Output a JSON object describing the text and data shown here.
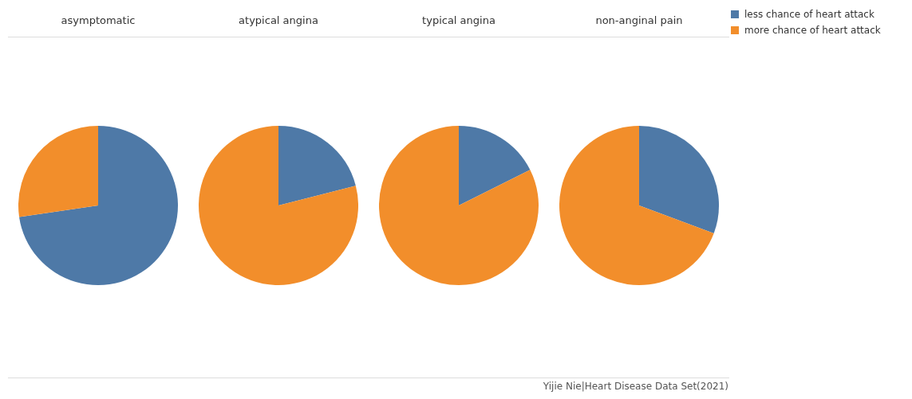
{
  "chart_data": [
    {
      "type": "pie",
      "title": "asymptomatic",
      "categories": [
        "less chance of heart attack",
        "more chance of heart attack"
      ],
      "values": [
        72.7,
        27.3
      ],
      "colors": [
        "#4e79a7",
        "#f28e2b"
      ],
      "legend": "top right"
    },
    {
      "type": "pie",
      "title": "atypical angina",
      "categories": [
        null,
        null
      ],
      "values": [
        21,
        79
      ],
      "colors": [
        "#4e79a7",
        "#f28e2b"
      ]
    },
    {
      "type": "pie",
      "title": "typical angina",
      "categories": [
        null,
        null
      ],
      "values": [
        17.6,
        82.4
      ],
      "colors": [
        "#4e79a7",
        "#f28e2b"
      ]
    },
    {
      "type": "pie",
      "title": "non-anginal pain",
      "categories": [
        null,
        null
      ],
      "values": [
        30.7,
        69.3
      ],
      "colors": [
        "#4e79a7",
        "#f28e2b"
      ],
      "annotations": [
        "Yijie Nie|Heart Disease Data Set(2021)"
      ]
    }
  ]
}
